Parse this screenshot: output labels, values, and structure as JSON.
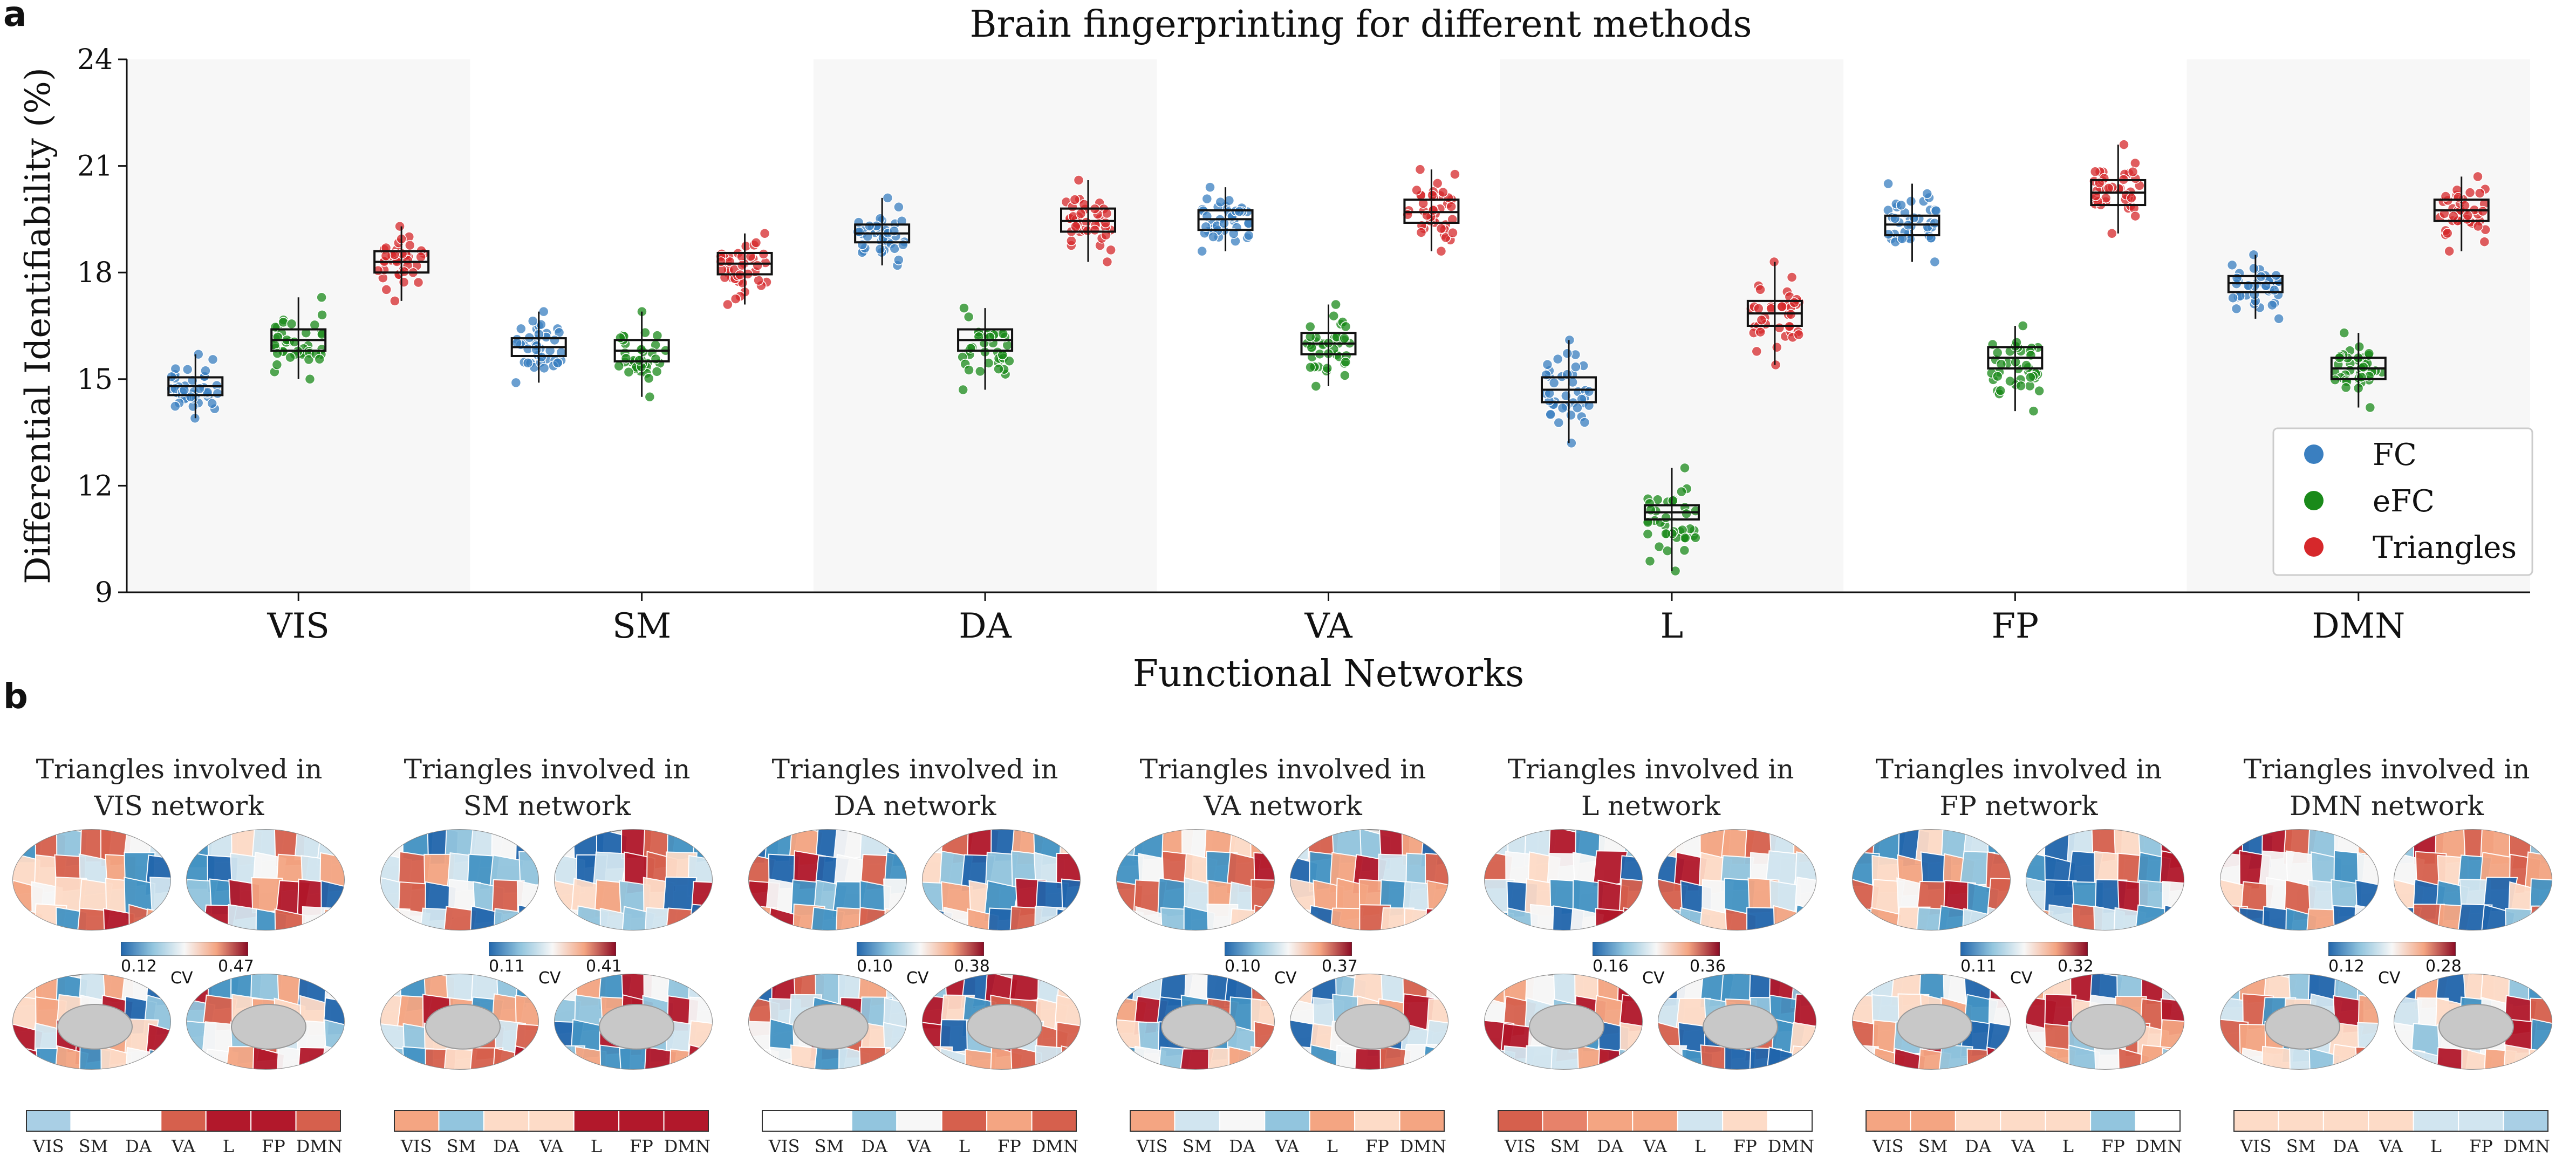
{
  "panel_a_letter": "a",
  "panel_b_letter": "b",
  "chart_data": {
    "type": "box",
    "title": "Brain fingerprinting for different methods",
    "xlabel": "Functional Networks",
    "ylabel": "Differential  Identifiability (%)",
    "ylim": [
      9,
      24
    ],
    "yticks": [
      "9",
      "12",
      "15",
      "18",
      "21",
      "24"
    ],
    "categories": [
      "VIS",
      "SM",
      "DA",
      "VA",
      "L",
      "FP",
      "DMN"
    ],
    "legend_position": "lower-right",
    "series": [
      {
        "name": "FC",
        "color": "#3a7fc0",
        "medians": [
          14.8,
          15.9,
          19.1,
          19.5,
          14.7,
          19.35,
          17.7
        ],
        "q1": [
          14.55,
          15.65,
          18.85,
          19.2,
          14.35,
          19.05,
          17.45
        ],
        "q3": [
          15.05,
          16.15,
          19.35,
          19.75,
          15.05,
          19.6,
          17.9
        ],
        "min": [
          13.9,
          14.9,
          18.2,
          18.6,
          13.2,
          18.3,
          16.7
        ],
        "max": [
          15.7,
          16.9,
          20.1,
          20.4,
          16.1,
          20.5,
          18.5
        ]
      },
      {
        "name": "eFC",
        "color": "#1a8a1a",
        "medians": [
          16.1,
          15.8,
          16.1,
          16.0,
          11.25,
          15.6,
          15.3
        ],
        "q1": [
          15.8,
          15.5,
          15.8,
          15.7,
          11.05,
          15.3,
          15.0
        ],
        "q3": [
          16.4,
          16.1,
          16.4,
          16.3,
          11.45,
          15.9,
          15.6
        ],
        "min": [
          15.0,
          14.5,
          14.7,
          14.8,
          9.6,
          14.1,
          14.2
        ],
        "max": [
          17.3,
          16.9,
          17.0,
          17.1,
          12.5,
          16.5,
          16.3
        ]
      },
      {
        "name": "Triangles",
        "color": "#d6282b",
        "medians": [
          18.3,
          18.25,
          19.45,
          19.7,
          16.85,
          20.25,
          19.75
        ],
        "q1": [
          18.0,
          17.95,
          19.15,
          19.4,
          16.5,
          19.9,
          19.45
        ],
        "q3": [
          18.6,
          18.55,
          19.8,
          20.05,
          17.2,
          20.6,
          20.05
        ],
        "min": [
          17.2,
          17.1,
          18.3,
          18.6,
          15.4,
          19.1,
          18.6
        ],
        "max": [
          19.3,
          19.1,
          20.6,
          20.9,
          18.3,
          21.6,
          20.7
        ]
      }
    ]
  },
  "panel_b": {
    "cv_label": "CV",
    "strip_labels": [
      "VIS",
      "SM",
      "DA",
      "VA",
      "L",
      "FP",
      "DMN"
    ],
    "networks": [
      {
        "title_line1": "Triangles involved in",
        "title_line2": "VIS network",
        "cv_min": "0.12",
        "cv_max": "0.47",
        "strip_colors": [
          "#a9cfe5",
          "#ffffff",
          "#ffffff",
          "#d6604d",
          "#b2182b",
          "#b2182b",
          "#d6604d"
        ]
      },
      {
        "title_line1": "Triangles involved in",
        "title_line2": "SM network",
        "cv_min": "0.11",
        "cv_max": "0.41",
        "strip_colors": [
          "#f4a582",
          "#92c5de",
          "#fddbc7",
          "#fddbc7",
          "#b2182b",
          "#b2182b",
          "#b2182b"
        ]
      },
      {
        "title_line1": "Triangles involved in",
        "title_line2": "DA network",
        "cv_min": "0.10",
        "cv_max": "0.38",
        "strip_colors": [
          "#ffffff",
          "#ffffff",
          "#92c5de",
          "#f7f7f7",
          "#d6604d",
          "#f4a582",
          "#d6604d"
        ]
      },
      {
        "title_line1": "Triangles involved in",
        "title_line2": "VA network",
        "cv_min": "0.10",
        "cv_max": "0.37",
        "strip_colors": [
          "#f4a582",
          "#d1e5f0",
          "#f7f7f7",
          "#92c5de",
          "#f4a582",
          "#fddbc7",
          "#f4a582"
        ]
      },
      {
        "title_line1": "Triangles involved in",
        "title_line2": "L network",
        "cv_min": "0.16",
        "cv_max": "0.36",
        "strip_colors": [
          "#d6604d",
          "#e7826a",
          "#f4a582",
          "#f4a582",
          "#d1e5f0",
          "#fddbc7",
          "#ffffff"
        ]
      },
      {
        "title_line1": "Triangles involved in",
        "title_line2": "FP network",
        "cv_min": "0.11",
        "cv_max": "0.32",
        "strip_colors": [
          "#f4a582",
          "#f4a582",
          "#fddbc7",
          "#fddbc7",
          "#fddbc7",
          "#92c5de",
          "#ffffff"
        ]
      },
      {
        "title_line1": "Triangles involved in",
        "title_line2": "DMN network",
        "cv_min": "0.12",
        "cv_max": "0.28",
        "strip_colors": [
          "#fddbc7",
          "#fddbc7",
          "#fddbc7",
          "#fddbc7",
          "#d1e5f0",
          "#d1e5f0",
          "#a9cfe5"
        ]
      }
    ]
  }
}
